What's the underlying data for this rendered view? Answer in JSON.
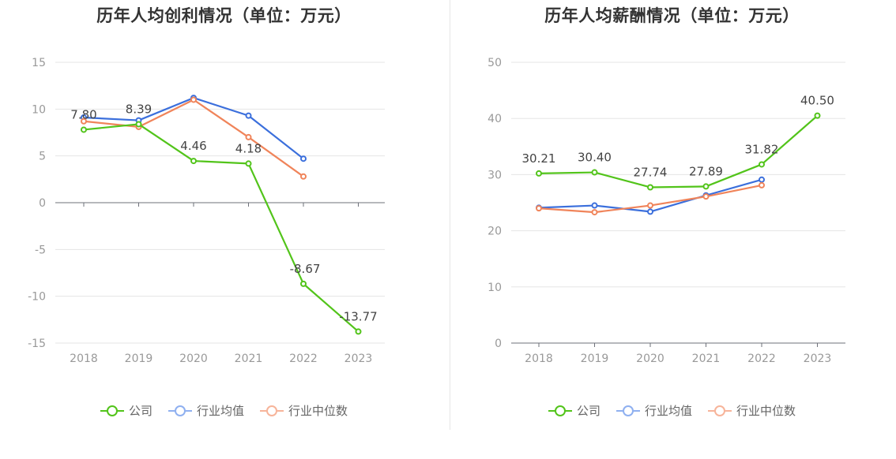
{
  "charts": [
    {
      "id": "left",
      "title": "历年人均创利情况（单位：万元）",
      "chart_data": {
        "type": "line",
        "title": "历年人均创利情况（单位：万元）",
        "categories": [
          "2018",
          "2019",
          "2020",
          "2021",
          "2022",
          "2023"
        ],
        "ylim": [
          -15,
          15
        ],
        "yticks": [
          15,
          10,
          5,
          0,
          -5,
          -10,
          -15
        ],
        "grid": true,
        "legend_position": "bottom",
        "series": [
          {
            "name": "公司",
            "color": "#52c41a",
            "values": [
              7.8,
              8.39,
              4.46,
              4.18,
              -8.67,
              -13.77
            ],
            "labels": [
              "7.80",
              "8.39",
              "4.46",
              "4.18",
              "-8.67",
              "-13.77"
            ]
          },
          {
            "name": "行业均值",
            "color": "#3b6fdc",
            "values": [
              9.1,
              8.8,
              11.2,
              9.3,
              4.7,
              null
            ]
          },
          {
            "name": "行业中位数",
            "color": "#f0845a",
            "values": [
              8.7,
              8.1,
              11.0,
              7.0,
              2.8,
              null
            ]
          }
        ]
      }
    },
    {
      "id": "right",
      "title": "历年人均薪酬情况（单位：万元）",
      "chart_data": {
        "type": "line",
        "title": "历年人均薪酬情况（单位：万元）",
        "categories": [
          "2018",
          "2019",
          "2020",
          "2021",
          "2022",
          "2023"
        ],
        "ylim": [
          0,
          50
        ],
        "yticks": [
          50,
          40,
          30,
          20,
          10,
          0
        ],
        "grid": true,
        "legend_position": "bottom",
        "series": [
          {
            "name": "公司",
            "color": "#52c41a",
            "values": [
              30.21,
              30.4,
              27.74,
              27.89,
              31.82,
              40.5
            ],
            "labels": [
              "30.21",
              "30.40",
              "27.74",
              "27.89",
              "31.82",
              "40.50"
            ]
          },
          {
            "name": "行业均值",
            "color": "#3b6fdc",
            "values": [
              24.1,
              24.5,
              23.4,
              26.3,
              29.1,
              null
            ]
          },
          {
            "name": "行业中位数",
            "color": "#f0845a",
            "values": [
              24.0,
              23.3,
              24.5,
              26.1,
              28.1,
              null
            ]
          }
        ]
      }
    }
  ],
  "legend": [
    {
      "name": "公司",
      "line_color": "#52c41a",
      "ring_color": "#52c41a"
    },
    {
      "name": "行业均值",
      "line_color": "#8fb0f0",
      "ring_color": "#8fb0f0"
    },
    {
      "name": "行业中位数",
      "line_color": "#f7b49a",
      "ring_color": "#f7b49a"
    }
  ]
}
